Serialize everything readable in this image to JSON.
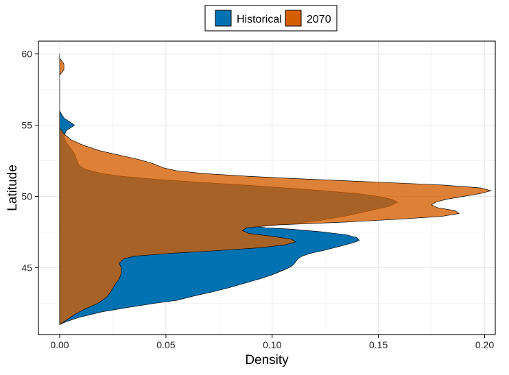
{
  "chart_data": {
    "type": "area",
    "orientation": "horizontal-density",
    "title": "",
    "xlabel": "Density",
    "ylabel": "Latitude",
    "xlim": [
      -0.01,
      0.205
    ],
    "ylim": [
      40.3,
      60.9
    ],
    "x_ticks": [
      0.0,
      0.05,
      0.1,
      0.15,
      0.2
    ],
    "x_tick_labels": [
      "0.00",
      "0.05",
      "0.10",
      "0.15",
      "0.20"
    ],
    "y_ticks": [
      45,
      50,
      55,
      60
    ],
    "y_tick_labels": [
      "45",
      "50",
      "55",
      "60"
    ],
    "grid": true,
    "legend_position": "top",
    "series": [
      {
        "name": "Historical",
        "color": "#0072B2",
        "points": [
          [
            41.0,
            0.0
          ],
          [
            41.2,
            0.003
          ],
          [
            41.5,
            0.009
          ],
          [
            41.9,
            0.02
          ],
          [
            42.2,
            0.032
          ],
          [
            42.5,
            0.045
          ],
          [
            42.7,
            0.055
          ],
          [
            43.0,
            0.063
          ],
          [
            43.3,
            0.072
          ],
          [
            43.6,
            0.08
          ],
          [
            43.9,
            0.087
          ],
          [
            44.2,
            0.094
          ],
          [
            44.5,
            0.1
          ],
          [
            44.8,
            0.105
          ],
          [
            45.0,
            0.108
          ],
          [
            45.2,
            0.11
          ],
          [
            45.4,
            0.111
          ],
          [
            45.6,
            0.112
          ],
          [
            45.8,
            0.114
          ],
          [
            46.0,
            0.118
          ],
          [
            46.2,
            0.124
          ],
          [
            46.5,
            0.132
          ],
          [
            46.7,
            0.137
          ],
          [
            46.9,
            0.141
          ],
          [
            47.1,
            0.14
          ],
          [
            47.3,
            0.135
          ],
          [
            47.5,
            0.124
          ],
          [
            47.7,
            0.109
          ],
          [
            47.8,
            0.097
          ],
          [
            47.9,
            0.091
          ],
          [
            48.0,
            0.1
          ],
          [
            48.1,
            0.11
          ],
          [
            48.3,
            0.122
          ],
          [
            48.6,
            0.134
          ],
          [
            49.0,
            0.146
          ],
          [
            49.3,
            0.155
          ],
          [
            49.6,
            0.159
          ],
          [
            49.8,
            0.156
          ],
          [
            50.0,
            0.15
          ],
          [
            50.2,
            0.14
          ],
          [
            50.4,
            0.124
          ],
          [
            50.6,
            0.106
          ],
          [
            50.8,
            0.087
          ],
          [
            51.0,
            0.065
          ],
          [
            51.2,
            0.045
          ],
          [
            51.4,
            0.03
          ],
          [
            51.6,
            0.02
          ],
          [
            51.9,
            0.012
          ],
          [
            52.2,
            0.009
          ],
          [
            52.6,
            0.008
          ],
          [
            53.0,
            0.007
          ],
          [
            53.4,
            0.005
          ],
          [
            53.8,
            0.003
          ],
          [
            54.2,
            0.002
          ],
          [
            54.6,
            0.003
          ],
          [
            54.8,
            0.005
          ],
          [
            55.0,
            0.007
          ],
          [
            55.2,
            0.005
          ],
          [
            55.5,
            0.002
          ],
          [
            56.0,
            0.0
          ]
        ]
      },
      {
        "name": "2070",
        "color": "#D55E00",
        "points": [
          [
            41.0,
            0.0
          ],
          [
            41.3,
            0.003
          ],
          [
            41.7,
            0.007
          ],
          [
            42.1,
            0.012
          ],
          [
            42.5,
            0.018
          ],
          [
            42.9,
            0.022
          ],
          [
            43.3,
            0.024
          ],
          [
            43.8,
            0.026
          ],
          [
            44.2,
            0.028
          ],
          [
            44.6,
            0.029
          ],
          [
            45.0,
            0.029
          ],
          [
            45.3,
            0.028
          ],
          [
            45.6,
            0.03
          ],
          [
            45.8,
            0.035
          ],
          [
            46.0,
            0.052
          ],
          [
            46.2,
            0.075
          ],
          [
            46.4,
            0.095
          ],
          [
            46.6,
            0.106
          ],
          [
            46.8,
            0.111
          ],
          [
            47.0,
            0.109
          ],
          [
            47.2,
            0.1
          ],
          [
            47.4,
            0.089
          ],
          [
            47.6,
            0.086
          ],
          [
            47.8,
            0.088
          ],
          [
            48.0,
            0.103
          ],
          [
            48.2,
            0.135
          ],
          [
            48.4,
            0.16
          ],
          [
            48.6,
            0.18
          ],
          [
            48.8,
            0.188
          ],
          [
            49.0,
            0.186
          ],
          [
            49.2,
            0.178
          ],
          [
            49.4,
            0.175
          ],
          [
            49.6,
            0.177
          ],
          [
            49.8,
            0.182
          ],
          [
            50.0,
            0.19
          ],
          [
            50.2,
            0.198
          ],
          [
            50.4,
            0.203
          ],
          [
            50.6,
            0.198
          ],
          [
            50.8,
            0.18
          ],
          [
            51.0,
            0.15
          ],
          [
            51.2,
            0.118
          ],
          [
            51.4,
            0.09
          ],
          [
            51.6,
            0.068
          ],
          [
            51.8,
            0.055
          ],
          [
            52.0,
            0.049
          ],
          [
            52.3,
            0.044
          ],
          [
            52.6,
            0.037
          ],
          [
            52.9,
            0.028
          ],
          [
            53.2,
            0.019
          ],
          [
            53.6,
            0.011
          ],
          [
            54.0,
            0.005
          ],
          [
            54.4,
            0.002
          ],
          [
            54.8,
            0.0
          ],
          [
            57.0,
            0.0
          ],
          [
            58.5,
            0.0
          ],
          [
            58.9,
            0.002
          ],
          [
            59.3,
            0.002
          ],
          [
            59.7,
            0.0
          ],
          [
            60.0,
            0.0
          ]
        ]
      }
    ],
    "legend": {
      "items": [
        {
          "name": "Historical",
          "color": "#0072B2"
        },
        {
          "name": "2070",
          "color": "#D55E00"
        }
      ]
    }
  }
}
